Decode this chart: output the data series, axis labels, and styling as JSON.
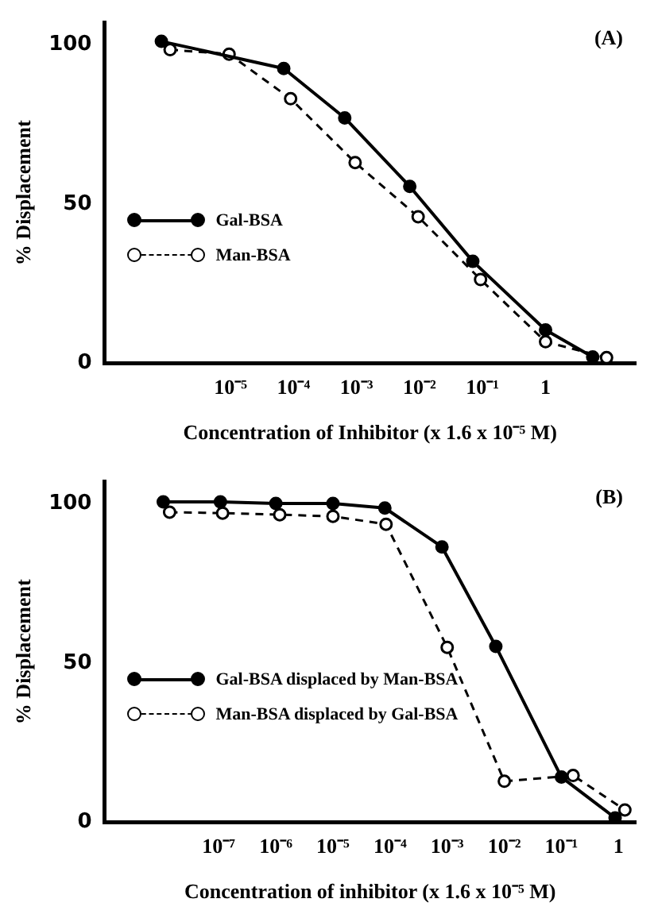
{
  "chart_data": [
    {
      "type": "line",
      "title": "(A)",
      "xlabel": "Concentration of Inhibitor (x 1.6 x 10⁻⁵ M)",
      "ylabel": "% Displacement",
      "log": "x",
      "grid": false,
      "legend": "left",
      "marker": "circle",
      "xlim": [
        1e-07,
        27
      ],
      "ylim": [
        0,
        107
      ],
      "yticks": [
        0,
        50,
        100
      ],
      "xticks": [
        {
          "value": 1e-05,
          "label": "10⁻⁵"
        },
        {
          "value": 0.0001,
          "label": "10⁻⁴"
        },
        {
          "value": 0.001,
          "label": "10⁻³"
        },
        {
          "value": 0.01,
          "label": "10⁻²"
        },
        {
          "value": 0.1,
          "label": "10⁻¹"
        },
        {
          "value": 1,
          "label": "1"
        }
      ],
      "series": [
        {
          "name": "Gal-BSA",
          "color": "#000000",
          "line_style": "solid",
          "x": [
            8e-07,
            7e-05,
            0.00065,
            0.007,
            0.07,
            1,
            5.6
          ],
          "values": [
            101,
            92.5,
            77,
            55.5,
            32,
            10.5,
            2
          ]
        },
        {
          "name": "Man-BSA",
          "color": "#000000",
          "line_style": "dashed",
          "x": [
            1.1e-06,
            9.5e-06,
            9e-05,
            0.00095,
            0.0095,
            0.093,
            1,
            9.3
          ],
          "values": [
            98.4,
            97,
            83,
            63,
            46,
            26.3,
            6.8,
            1.8
          ]
        }
      ]
    },
    {
      "type": "line",
      "title": "(B)",
      "xlabel": "Concentration of inhibitor (x 1.6 x 10⁻⁵ M)",
      "ylabel": "% Displacement",
      "log": "x",
      "grid": false,
      "legend": "left",
      "marker": "circle",
      "xlim": [
        1e-09,
        2
      ],
      "ylim": [
        0,
        107
      ],
      "yticks": [
        0,
        50,
        100
      ],
      "xticks": [
        {
          "value": 1e-07,
          "label": "10⁻⁷"
        },
        {
          "value": 1e-06,
          "label": "10⁻⁶"
        },
        {
          "value": 1e-05,
          "label": "10⁻⁵"
        },
        {
          "value": 0.0001,
          "label": "10⁻⁴"
        },
        {
          "value": 0.001,
          "label": "10⁻³"
        },
        {
          "value": 0.01,
          "label": "10⁻²"
        },
        {
          "value": 0.1,
          "label": "10⁻¹"
        },
        {
          "value": 1,
          "label": "1"
        }
      ],
      "series": [
        {
          "name": "Gal-BSA displaced by Man-BSA",
          "color": "#000000",
          "line_style": "solid",
          "x": [
            1.07e-08,
            1.07e-07,
            1e-06,
            1e-05,
            8.1e-05,
            0.00081,
            0.0071,
            0.1,
            0.87
          ],
          "values": [
            100.5,
            100.5,
            100,
            100,
            98.6,
            86.4,
            55.2,
            14.2,
            1.4
          ]
        },
        {
          "name": "Man-BSA displaced by Gal-BSA",
          "color": "#000000",
          "line_style": "dashed",
          "x": [
            1.38e-08,
            1.17e-07,
            1.17e-06,
            1e-05,
            8.5e-05,
            0.001,
            0.01,
            0.16,
            1.29
          ],
          "values": [
            97.3,
            97,
            96.5,
            96,
            93.5,
            54.9,
            12.9,
            14.7,
            3.9
          ]
        }
      ]
    }
  ]
}
